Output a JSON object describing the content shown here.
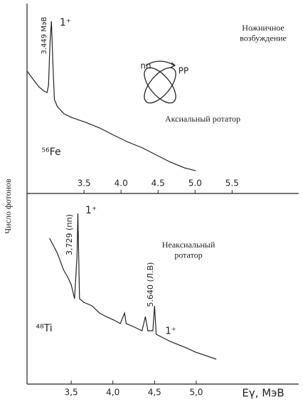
{
  "chart_data": [
    {
      "type": "line",
      "ylabel": "Число фотонов",
      "annotations": [
        "3.449 МэВ",
        "1⁺",
        "Ножничное возбуждение",
        "nn",
        "PP",
        "Аксиальный ротатор",
        "⁵⁶Fe"
      ],
      "x": [
        2.73,
        2.8,
        2.89,
        2.96,
        3.0,
        3.02,
        3.04,
        3.06,
        3.08,
        3.1,
        3.14,
        3.23,
        3.33,
        3.52,
        3.71,
        3.9,
        4.1,
        4.29,
        4.48,
        4.67,
        4.86,
        5.01
      ],
      "series": [
        {
          "color": "#222222",
          "values": [
            64.2,
            60.4,
            55.8,
            53.6,
            52.8,
            56.6,
            79.2,
            90.6,
            67.9,
            49.1,
            45.3,
            41.5,
            39.6,
            37.0,
            34.0,
            30.2,
            26.4,
            23.4,
            19.6,
            15.8,
            12.8,
            11.3
          ]
        }
      ],
      "xlim": [
        2.73,
        6.4
      ],
      "ylim": [
        0,
        100
      ],
      "xticks": [
        3.5,
        {
          "value": 4,
          "label": "4.0"
        },
        4.5,
        {
          "value": 5,
          "label": "5.0"
        },
        5.5
      ]
    },
    {
      "type": "line",
      "xlabel": "Eγ, МэВ",
      "annotations": [
        "3,729 (пп)",
        "1⁺",
        "Неаксиальный ротатор",
        "5.640 (Л.В)",
        "1⁺",
        "⁴⁸Ti"
      ],
      "x": [
        3.24,
        3.33,
        3.41,
        3.46,
        3.5,
        3.54,
        3.57,
        3.58,
        3.6,
        3.65,
        3.75,
        3.84,
        3.92,
        4.01,
        4.09,
        4.14,
        4.16,
        4.26,
        4.35,
        4.39,
        4.42,
        4.48,
        4.5,
        4.52,
        4.69,
        4.86,
        4.99,
        5.24
      ],
      "series": [
        {
          "color": "#222222",
          "values": [
            77.4,
            69.8,
            60.4,
            56.6,
            52.8,
            45.3,
            67.9,
            90.6,
            45.3,
            43.4,
            41.5,
            37.7,
            35.8,
            34.0,
            32.1,
            37.7,
            32.1,
            30.2,
            28.3,
            35.8,
            28.3,
            28.3,
            41.5,
            26.4,
            22.6,
            19.6,
            17.0,
            13.2
          ]
        }
      ],
      "xlim": [
        2.97,
        6.23
      ],
      "ylim": [
        0,
        100
      ],
      "xticks": [
        {
          "value": 3.5,
          "label": "3,5"
        },
        {
          "value": 4,
          "label": "4,0"
        },
        {
          "value": 4.5,
          "label": "4,5"
        },
        {
          "value": 5,
          "label": "5,0"
        }
      ]
    }
  ]
}
